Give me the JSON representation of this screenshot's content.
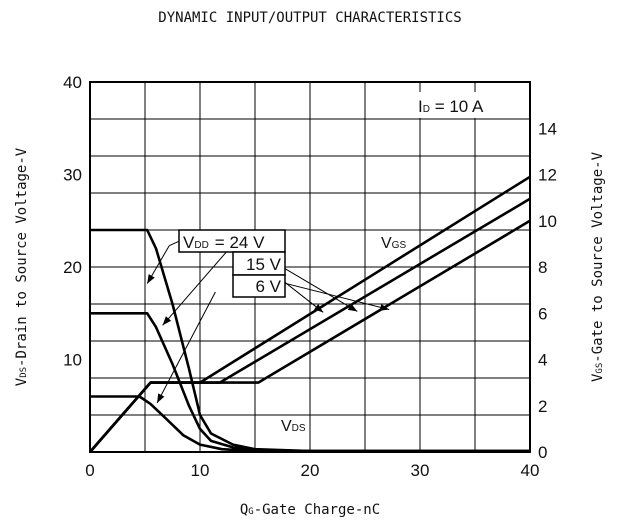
{
  "chart_data": {
    "type": "line",
    "title": "DYNAMIC INPUT/OUTPUT CHARACTERISTICS",
    "xlabel": {
      "main": "Q",
      "sub": "G",
      "rest": "-Gate Charge-nC"
    },
    "ylabel_left": {
      "main": "V",
      "sub": "DS",
      "rest": "-Drain to Source Voltage-V"
    },
    "ylabel_right": {
      "main": "V",
      "sub": "GS",
      "rest": "-Gate to Source Voltage-V"
    },
    "xlim": [
      0,
      40
    ],
    "ylim_left": [
      0,
      40
    ],
    "ylim_right": [
      0,
      16
    ],
    "x_ticks": [
      0,
      10,
      20,
      30,
      40
    ],
    "y_left_ticks": [
      10,
      20,
      30,
      40
    ],
    "y_right_ticks": [
      0,
      2,
      4,
      6,
      8,
      10,
      12,
      14
    ],
    "grid": true,
    "condition": {
      "main": "I",
      "sub": "D",
      "rest": " = 10 A"
    },
    "vdd_legend": {
      "prefix_main": "V",
      "prefix_sub": "DD",
      "items": [
        "= 24  V",
        "15  V",
        "6  V"
      ]
    },
    "curve_labels": {
      "vgs": {
        "main": "V",
        "sub": "GS"
      },
      "vds": {
        "main": "V",
        "sub": "DS"
      }
    },
    "series": [
      {
        "group": "VDS",
        "vdd": 24,
        "axis": "left",
        "points": [
          [
            0,
            24
          ],
          [
            5.2,
            24
          ],
          [
            6,
            22
          ],
          [
            7.5,
            16
          ],
          [
            9,
            9
          ],
          [
            10,
            4
          ],
          [
            11,
            2
          ],
          [
            13,
            0.8
          ],
          [
            15,
            0.3
          ],
          [
            20,
            0.1
          ],
          [
            40,
            0.1
          ]
        ]
      },
      {
        "group": "VDS",
        "vdd": 15,
        "axis": "left",
        "points": [
          [
            0,
            15
          ],
          [
            5.2,
            15
          ],
          [
            6,
            13.5
          ],
          [
            7.5,
            9.5
          ],
          [
            9,
            5
          ],
          [
            10,
            2.5
          ],
          [
            11,
            1.2
          ],
          [
            13,
            0.5
          ],
          [
            15,
            0.2
          ],
          [
            20,
            0.1
          ],
          [
            40,
            0.1
          ]
        ]
      },
      {
        "group": "VDS",
        "vdd": 6,
        "axis": "left",
        "points": [
          [
            0,
            6
          ],
          [
            4.5,
            6
          ],
          [
            5.5,
            5.2
          ],
          [
            7,
            3.5
          ],
          [
            8.5,
            1.8
          ],
          [
            10,
            0.8
          ],
          [
            12,
            0.3
          ],
          [
            15,
            0.1
          ],
          [
            40,
            0.1
          ]
        ]
      },
      {
        "group": "VGS",
        "vdd": 6,
        "axis": "right",
        "points": [
          [
            0,
            0
          ],
          [
            5.5,
            3
          ],
          [
            10,
            3
          ],
          [
            40,
            11.9
          ]
        ]
      },
      {
        "group": "VGS",
        "vdd": 15,
        "axis": "right",
        "points": [
          [
            0,
            0
          ],
          [
            5.5,
            3
          ],
          [
            11.8,
            3
          ],
          [
            40,
            10.95
          ]
        ]
      },
      {
        "group": "VGS",
        "vdd": 24,
        "axis": "right",
        "points": [
          [
            0,
            0
          ],
          [
            5.5,
            3
          ],
          [
            15.3,
            3
          ],
          [
            40,
            10
          ]
        ]
      }
    ],
    "leader_lines": [
      {
        "from": [
          7.2,
          22.3
        ],
        "to": [
          5.2,
          18.2
        ]
      },
      {
        "from": [
          7.2,
          22.3
        ],
        "to": [
          9.6,
          23.6
        ]
      },
      {
        "from": [
          12.6,
          21.9
        ],
        "to": [
          6.6,
          13.7
        ]
      },
      {
        "from": [
          12.6,
          21.9
        ],
        "to": [
          13.7,
          22.2
        ]
      },
      {
        "from": [
          11.4,
          17.3
        ],
        "to": [
          6.1,
          5.3
        ]
      },
      {
        "from": [
          13.9,
          21.9
        ],
        "to": [
          21.2,
          15.1
        ]
      },
      {
        "from": [
          17.2,
          20.2
        ],
        "to": [
          24.3,
          15.2
        ]
      },
      {
        "from": [
          17.2,
          18.4
        ],
        "to": [
          27.2,
          15.4
        ]
      }
    ]
  }
}
